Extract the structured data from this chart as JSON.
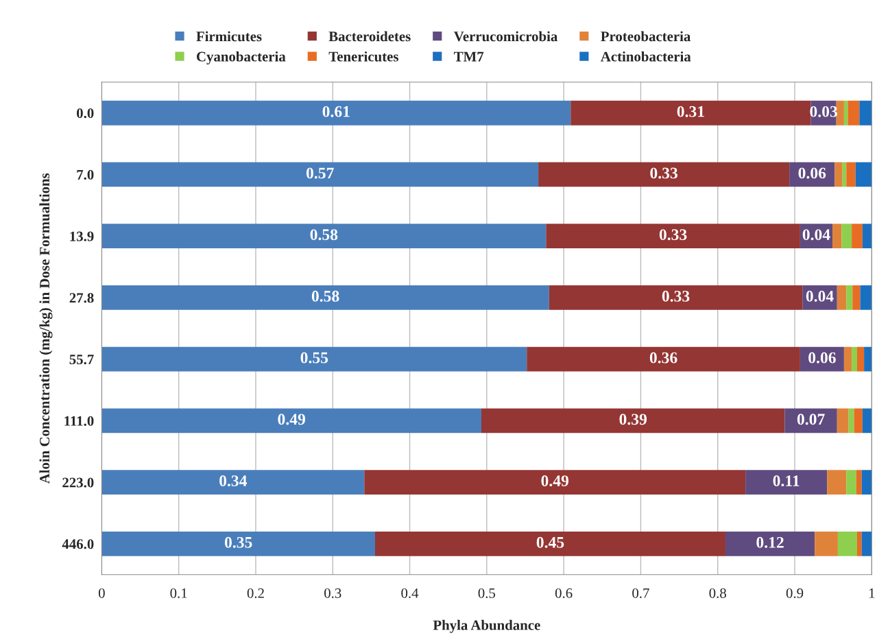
{
  "chart_data": {
    "type": "bar",
    "orientation": "horizontal",
    "stacked": true,
    "xlabel": "Phyla Abundance",
    "ylabel": "Aloin Concentration (mg/kg) in Dose Formualtions",
    "categories": [
      "0.0",
      "7.0",
      "13.9",
      "27.8",
      "55.7",
      "111.0",
      "223.0",
      "446.0"
    ],
    "series": [
      {
        "name": "Firmicutes",
        "color": "#4a7ebb",
        "values": [
          0.609,
          0.567,
          0.577,
          0.581,
          0.552,
          0.493,
          0.341,
          0.355
        ],
        "value_labels": [
          "0.61",
          "0.57",
          "0.58",
          "0.58",
          "0.55",
          "0.49",
          "0.34",
          "0.35"
        ]
      },
      {
        "name": "Bacteroidetes",
        "color": "#943634",
        "values": [
          0.312,
          0.326,
          0.33,
          0.329,
          0.355,
          0.394,
          0.495,
          0.455
        ],
        "value_labels": [
          "0.31",
          "0.33",
          "0.33",
          "0.33",
          "0.36",
          "0.39",
          "0.49",
          "0.45"
        ]
      },
      {
        "name": "Verrucomicrobia",
        "color": "#5f4b7f",
        "values": [
          0.033,
          0.059,
          0.042,
          0.045,
          0.057,
          0.068,
          0.106,
          0.116
        ],
        "value_labels": [
          "0.03",
          "0.06",
          "0.04",
          "0.04",
          "0.06",
          "0.07",
          "0.11",
          "0.12"
        ]
      },
      {
        "name": "Proteobacteria",
        "color": "#e0833a",
        "values": [
          0.01,
          0.01,
          0.012,
          0.012,
          0.01,
          0.015,
          0.025,
          0.03
        ]
      },
      {
        "name": "Cyanobacteria",
        "color": "#8fcf4e",
        "values": [
          0.005,
          0.005,
          0.013,
          0.008,
          0.007,
          0.007,
          0.013,
          0.025
        ]
      },
      {
        "name": "Tenericutes",
        "color": "#e86c23",
        "values": [
          0.015,
          0.012,
          0.014,
          0.01,
          0.009,
          0.011,
          0.007,
          0.006
        ]
      },
      {
        "name": "TM7",
        "color": "#1f6fbf",
        "values": [
          0,
          0,
          0,
          0,
          0,
          0,
          0,
          0
        ]
      },
      {
        "name": "Actinobacteria",
        "color": "#1a70c0",
        "values": [
          0.016,
          0.021,
          0.012,
          0.015,
          0.01,
          0.012,
          0.013,
          0.013
        ]
      }
    ],
    "xlim": [
      0,
      1
    ],
    "xticks": [
      0,
      0.1,
      0.2,
      0.3,
      0.4,
      0.5,
      0.6,
      0.7,
      0.8,
      0.9,
      1
    ],
    "grid": "x",
    "legend": "top"
  }
}
